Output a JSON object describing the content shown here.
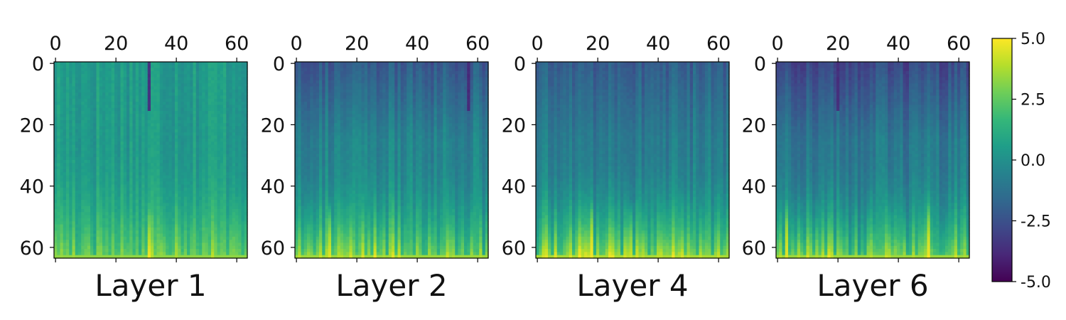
{
  "chart_data": [
    {
      "type": "heatmap",
      "title": "Layer 1",
      "rows": 64,
      "cols": 64,
      "x_ticks": [
        0,
        20,
        40,
        60
      ],
      "y_ticks": [
        0,
        20,
        40,
        60
      ],
      "x_range": [
        0,
        63
      ],
      "y_range": [
        0,
        63
      ],
      "base_value": 0.5,
      "bottom_value": 2.8,
      "column_offsets": [
        {
          "col": 31,
          "top": -3.5,
          "bottom": 4.8
        },
        {
          "col": 60,
          "bottom": 2.0
        }
      ]
    },
    {
      "type": "heatmap",
      "title": "Layer 2",
      "rows": 64,
      "cols": 64,
      "x_ticks": [
        0,
        20,
        40,
        60
      ],
      "y_ticks": [
        0,
        20,
        40,
        60
      ],
      "x_range": [
        0,
        63
      ],
      "y_range": [
        0,
        63
      ],
      "base_value": -0.5,
      "top_value": -2.2,
      "bottom_value": 3.0,
      "column_offsets": [
        {
          "col": 11,
          "bottom": 4.5
        },
        {
          "col": 57,
          "top": -3.8
        }
      ]
    },
    {
      "type": "heatmap",
      "title": "Layer 4",
      "rows": 64,
      "cols": 64,
      "x_ticks": [
        0,
        20,
        40,
        60
      ],
      "y_ticks": [
        0,
        20,
        40,
        60
      ],
      "x_range": [
        0,
        63
      ],
      "y_range": [
        0,
        63
      ],
      "base_value": -0.8,
      "top_value": -2.0,
      "bottom_value": 3.2,
      "column_offsets": [
        {
          "col": 18,
          "bottom": 4.8
        },
        {
          "col": 31,
          "bottom": 4.2
        }
      ]
    },
    {
      "type": "heatmap",
      "title": "Layer 6",
      "rows": 64,
      "cols": 64,
      "x_ticks": [
        0,
        20,
        40,
        60
      ],
      "y_ticks": [
        0,
        20,
        40,
        60
      ],
      "x_range": [
        0,
        63
      ],
      "y_range": [
        0,
        63
      ],
      "base_value": -1.0,
      "top_value": -2.8,
      "bottom_value": 3.0,
      "column_offsets": [
        {
          "col": 3,
          "bottom": 4.5
        },
        {
          "col": 50,
          "bottom": 4.6
        },
        {
          "col": 20,
          "top": -3.6
        }
      ]
    }
  ],
  "colorbar": {
    "min": -5.0,
    "max": 5.0,
    "tick_values": [
      5.0,
      2.5,
      0.0,
      -2.5,
      -5.0
    ],
    "tick_labels": [
      "5.0",
      "2.5",
      "0.0",
      "-2.5",
      "-5.0"
    ],
    "colormap": "viridis",
    "colormap_stops": [
      "#440154",
      "#482878",
      "#3e4989",
      "#31688e",
      "#26828e",
      "#1f9e89",
      "#35b779",
      "#6ece58",
      "#b5de2b",
      "#fde725"
    ]
  }
}
